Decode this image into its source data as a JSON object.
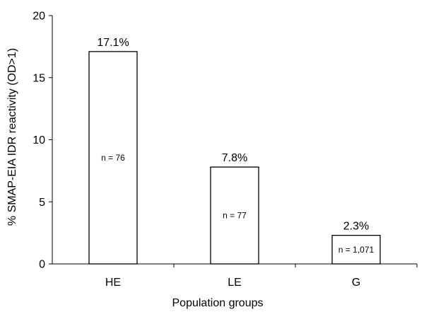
{
  "chart_data": {
    "type": "bar",
    "title": "",
    "xlabel": "Population groups",
    "ylabel": "% SMAP-EIA IDR reactivity (OD>1)",
    "categories": [
      "HE",
      "LE",
      "G"
    ],
    "values": [
      17.1,
      7.8,
      2.3
    ],
    "value_labels": [
      "17.1%",
      "7.8%",
      "2.3%"
    ],
    "n_labels": [
      "n = 76",
      "n = 77",
      "n = 1,071"
    ],
    "ylim": [
      0,
      20
    ],
    "yticks": [
      0,
      5,
      10,
      15,
      20
    ],
    "ytick_labels": [
      "0",
      "5",
      "10",
      "15",
      "20"
    ],
    "grid": false,
    "legend": "none",
    "bar_color": "#ffffff",
    "bar_edge_color": "#000000"
  }
}
